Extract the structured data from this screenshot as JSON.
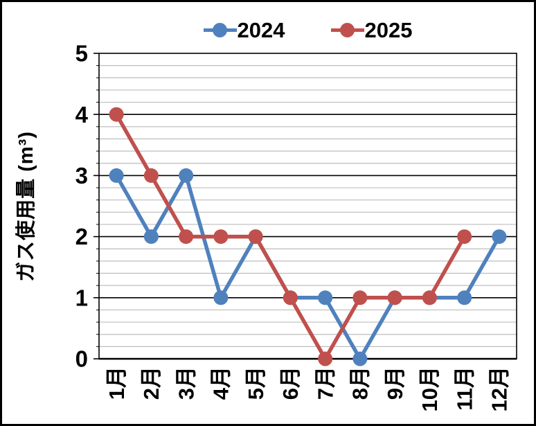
{
  "chart_data": {
    "type": "line",
    "title": "",
    "categories": [
      "1月",
      "2月",
      "3月",
      "4月",
      "5月",
      "6月",
      "7月",
      "8月",
      "9月",
      "10月",
      "11月",
      "12月"
    ],
    "series": [
      {
        "name": "2024",
        "color": "#4F81BD",
        "values": [
          3,
          2,
          3,
          1,
          2,
          1,
          1,
          0,
          1,
          1,
          1,
          2
        ]
      },
      {
        "name": "2025",
        "color": "#C0504D",
        "values": [
          4,
          3,
          2,
          2,
          2,
          1,
          0,
          1,
          1,
          1,
          2,
          null
        ]
      }
    ],
    "xlabel": "",
    "ylabel": "ガス使用量 (m³)",
    "ylim": [
      0,
      5
    ],
    "yticks": [
      0,
      1,
      2,
      3,
      4,
      5
    ],
    "y_major": 1,
    "y_minor": 0.2,
    "grid": true,
    "legend_position": "top-center",
    "marker": "circle",
    "colors": {
      "background": "#ffffff",
      "page_border": "#000000",
      "major_grid": "#000000",
      "minor_grid": "#bdbdbd",
      "axis": "#000000",
      "text": "#000000"
    }
  }
}
